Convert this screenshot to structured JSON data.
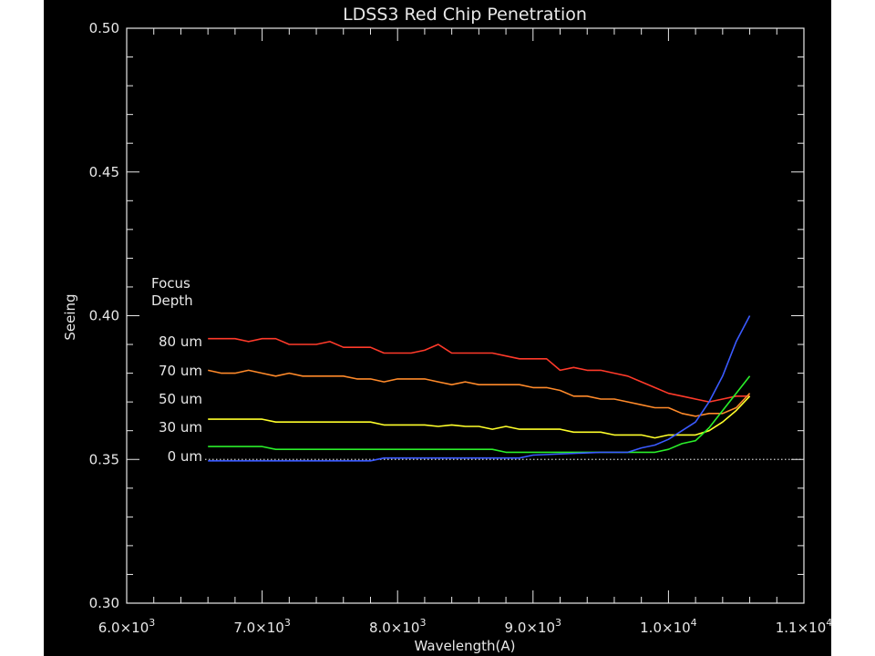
{
  "chart_data": {
    "type": "line",
    "title": "LDSS3 Red Chip Penetration",
    "xlabel": "Wavelength(A)",
    "ylabel": "Seeing",
    "xlim": [
      6000,
      11000
    ],
    "ylim": [
      0.3,
      0.5
    ],
    "x_ticks": [
      {
        "value": 6000,
        "mant": "6.0",
        "exp": "3"
      },
      {
        "value": 7000,
        "mant": "7.0",
        "exp": "3"
      },
      {
        "value": 8000,
        "mant": "8.0",
        "exp": "3"
      },
      {
        "value": 9000,
        "mant": "9.0",
        "exp": "3"
      },
      {
        "value": 10000,
        "mant": "1.0",
        "exp": "4"
      },
      {
        "value": 11000,
        "mant": "1.1",
        "exp": "4"
      }
    ],
    "y_ticks": [
      {
        "value": 0.3,
        "label": "0.30"
      },
      {
        "value": 0.35,
        "label": "0.35"
      },
      {
        "value": 0.4,
        "label": "0.40"
      },
      {
        "value": 0.45,
        "label": "0.45"
      },
      {
        "value": 0.5,
        "label": "0.50"
      }
    ],
    "legend_title": [
      "Focus",
      "Depth"
    ],
    "reference_line": 0.35,
    "grid": false,
    "series": [
      {
        "name": "80 um",
        "color": "#ff3a2a",
        "points": [
          [
            6600,
            0.392
          ],
          [
            6800,
            0.392
          ],
          [
            6900,
            0.391
          ],
          [
            7000,
            0.392
          ],
          [
            7100,
            0.392
          ],
          [
            7200,
            0.39
          ],
          [
            7300,
            0.39
          ],
          [
            7400,
            0.39
          ],
          [
            7500,
            0.391
          ],
          [
            7600,
            0.389
          ],
          [
            7700,
            0.389
          ],
          [
            7800,
            0.389
          ],
          [
            7900,
            0.387
          ],
          [
            8000,
            0.387
          ],
          [
            8100,
            0.387
          ],
          [
            8200,
            0.388
          ],
          [
            8300,
            0.39
          ],
          [
            8400,
            0.387
          ],
          [
            8500,
            0.387
          ],
          [
            8600,
            0.387
          ],
          [
            8700,
            0.387
          ],
          [
            8800,
            0.386
          ],
          [
            8900,
            0.385
          ],
          [
            9000,
            0.385
          ],
          [
            9100,
            0.385
          ],
          [
            9200,
            0.381
          ],
          [
            9300,
            0.382
          ],
          [
            9400,
            0.381
          ],
          [
            9500,
            0.381
          ],
          [
            9600,
            0.38
          ],
          [
            9700,
            0.379
          ],
          [
            9800,
            0.377
          ],
          [
            9900,
            0.375
          ],
          [
            10000,
            0.373
          ],
          [
            10100,
            0.372
          ],
          [
            10200,
            0.371
          ],
          [
            10300,
            0.37
          ],
          [
            10400,
            0.371
          ],
          [
            10500,
            0.372
          ],
          [
            10600,
            0.372
          ]
        ]
      },
      {
        "name": "70 um",
        "color": "#ff8a2a",
        "points": [
          [
            6600,
            0.381
          ],
          [
            6700,
            0.38
          ],
          [
            6800,
            0.38
          ],
          [
            6900,
            0.381
          ],
          [
            7000,
            0.38
          ],
          [
            7100,
            0.379
          ],
          [
            7200,
            0.38
          ],
          [
            7300,
            0.379
          ],
          [
            7400,
            0.379
          ],
          [
            7500,
            0.379
          ],
          [
            7600,
            0.379
          ],
          [
            7700,
            0.378
          ],
          [
            7800,
            0.378
          ],
          [
            7900,
            0.377
          ],
          [
            8000,
            0.378
          ],
          [
            8100,
            0.378
          ],
          [
            8200,
            0.378
          ],
          [
            8300,
            0.377
          ],
          [
            8400,
            0.376
          ],
          [
            8500,
            0.377
          ],
          [
            8600,
            0.376
          ],
          [
            8700,
            0.376
          ],
          [
            8800,
            0.376
          ],
          [
            8900,
            0.376
          ],
          [
            9000,
            0.375
          ],
          [
            9100,
            0.375
          ],
          [
            9200,
            0.374
          ],
          [
            9300,
            0.372
          ],
          [
            9400,
            0.372
          ],
          [
            9500,
            0.371
          ],
          [
            9600,
            0.371
          ],
          [
            9700,
            0.37
          ],
          [
            9800,
            0.369
          ],
          [
            9900,
            0.368
          ],
          [
            10000,
            0.368
          ],
          [
            10100,
            0.366
          ],
          [
            10200,
            0.365
          ],
          [
            10300,
            0.366
          ],
          [
            10400,
            0.366
          ],
          [
            10500,
            0.368
          ],
          [
            10600,
            0.373
          ]
        ]
      },
      {
        "name": "50 um",
        "color": "#ffff2a",
        "points": [
          [
            6600,
            0.364
          ],
          [
            6700,
            0.364
          ],
          [
            6800,
            0.364
          ],
          [
            6900,
            0.364
          ],
          [
            7000,
            0.364
          ],
          [
            7100,
            0.363
          ],
          [
            7200,
            0.363
          ],
          [
            7300,
            0.363
          ],
          [
            7400,
            0.363
          ],
          [
            7500,
            0.363
          ],
          [
            7600,
            0.363
          ],
          [
            7700,
            0.363
          ],
          [
            7800,
            0.363
          ],
          [
            7900,
            0.362
          ],
          [
            8000,
            0.362
          ],
          [
            8100,
            0.362
          ],
          [
            8200,
            0.362
          ],
          [
            8300,
            0.3615
          ],
          [
            8400,
            0.362
          ],
          [
            8500,
            0.3615
          ],
          [
            8600,
            0.3615
          ],
          [
            8700,
            0.3605
          ],
          [
            8800,
            0.3615
          ],
          [
            8900,
            0.3605
          ],
          [
            9000,
            0.3605
          ],
          [
            9100,
            0.3605
          ],
          [
            9200,
            0.3605
          ],
          [
            9300,
            0.3595
          ],
          [
            9400,
            0.3595
          ],
          [
            9500,
            0.3595
          ],
          [
            9600,
            0.3585
          ],
          [
            9700,
            0.3585
          ],
          [
            9800,
            0.3585
          ],
          [
            9900,
            0.3575
          ],
          [
            10000,
            0.3585
          ],
          [
            10100,
            0.3585
          ],
          [
            10200,
            0.3585
          ],
          [
            10300,
            0.36
          ],
          [
            10400,
            0.363
          ],
          [
            10500,
            0.367
          ],
          [
            10600,
            0.372
          ]
        ]
      },
      {
        "name": "30 um",
        "color": "#2aee2a",
        "points": [
          [
            6600,
            0.3545
          ],
          [
            6800,
            0.3545
          ],
          [
            6900,
            0.3545
          ],
          [
            7000,
            0.3545
          ],
          [
            7100,
            0.3535
          ],
          [
            7500,
            0.3535
          ],
          [
            8000,
            0.3535
          ],
          [
            8500,
            0.3535
          ],
          [
            8700,
            0.3535
          ],
          [
            8800,
            0.3525
          ],
          [
            9000,
            0.3525
          ],
          [
            9500,
            0.3525
          ],
          [
            9800,
            0.3525
          ],
          [
            9900,
            0.3525
          ],
          [
            10000,
            0.3535
          ],
          [
            10100,
            0.3555
          ],
          [
            10200,
            0.3565
          ],
          [
            10300,
            0.361
          ],
          [
            10400,
            0.367
          ],
          [
            10500,
            0.373
          ],
          [
            10600,
            0.379
          ]
        ]
      },
      {
        "name": "0 um",
        "color": "#3a5aff",
        "points": [
          [
            6600,
            0.3495
          ],
          [
            7000,
            0.3495
          ],
          [
            7500,
            0.3495
          ],
          [
            7800,
            0.3495
          ],
          [
            7900,
            0.3505
          ],
          [
            8500,
            0.3505
          ],
          [
            8900,
            0.3505
          ],
          [
            9000,
            0.3515
          ],
          [
            9500,
            0.3525
          ],
          [
            9700,
            0.3525
          ],
          [
            9800,
            0.354
          ],
          [
            9900,
            0.355
          ],
          [
            10000,
            0.357
          ],
          [
            10100,
            0.36
          ],
          [
            10200,
            0.363
          ],
          [
            10300,
            0.37
          ],
          [
            10400,
            0.379
          ],
          [
            10500,
            0.391
          ],
          [
            10600,
            0.4
          ]
        ]
      }
    ]
  }
}
